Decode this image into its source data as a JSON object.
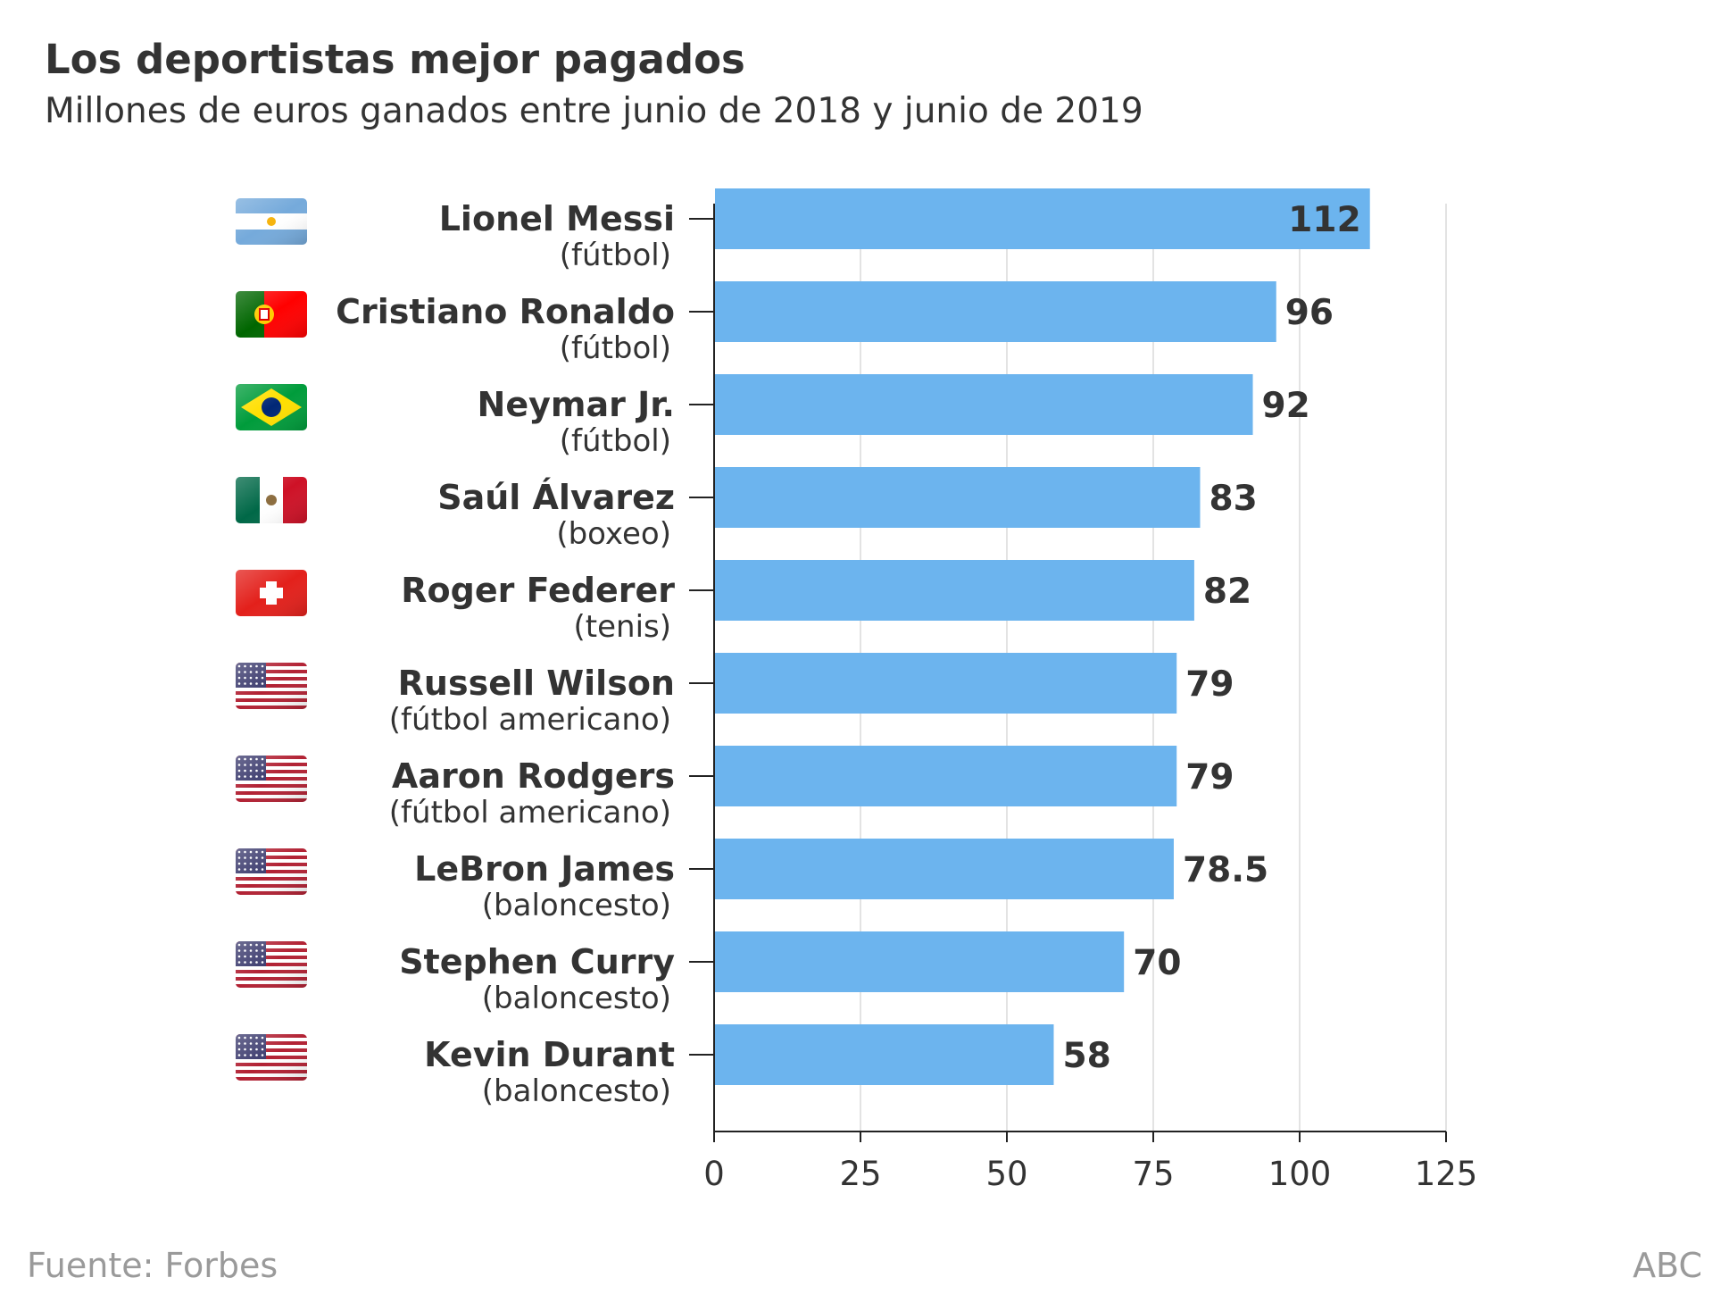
{
  "chart_data": {
    "type": "bar",
    "orientation": "horizontal",
    "title": "Los deportistas mejor pagados",
    "subtitle": "Millones de euros ganados entre junio de 2018 y junio de 2019",
    "categories": [
      "Lionel Messi",
      "Cristiano Ronaldo",
      "Neymar Jr.",
      "Saúl Álvarez",
      "Roger Federer",
      "Russell Wilson",
      "Aaron Rodgers",
      "LeBron James",
      "Stephen Curry",
      "Kevin Durant"
    ],
    "sports": [
      "(fútbol)",
      "(fútbol)",
      "(fútbol)",
      "(boxeo)",
      "(tenis)",
      "(fútbol americano)",
      "(fútbol americano)",
      "(baloncesto)",
      "(baloncesto)",
      "(baloncesto)"
    ],
    "countries": [
      "argentina",
      "portugal",
      "brazil",
      "mexico",
      "switzerland",
      "usa",
      "usa",
      "usa",
      "usa",
      "usa"
    ],
    "values": [
      112,
      96,
      92,
      83,
      82,
      79,
      79,
      78.5,
      70,
      58
    ],
    "value_labels": [
      "112",
      "96",
      "92",
      "83",
      "82",
      "79",
      "79",
      "78.5",
      "70",
      "58"
    ],
    "xlim": [
      0,
      125
    ],
    "xticks": [
      0,
      25,
      50,
      75,
      100,
      125
    ],
    "xtick_labels": [
      "0",
      "25",
      "50",
      "75",
      "100",
      "125"
    ],
    "xlabel": "",
    "ylabel": "",
    "grid": "vertical",
    "bar_color": "#6cb4ee",
    "source": "Fuente: Forbes",
    "credit": "ABC"
  }
}
